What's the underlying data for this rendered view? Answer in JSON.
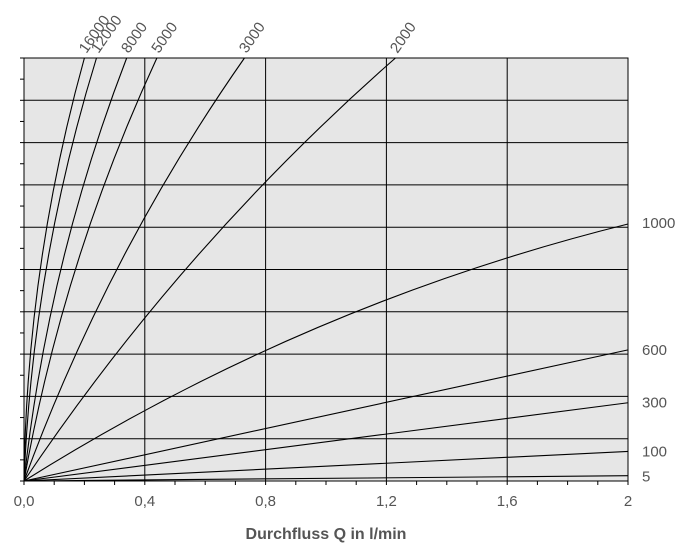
{
  "chart_data": {
    "type": "line",
    "title": "",
    "xlabel": "Durchfluss Q in l/min",
    "ylabel": "",
    "xlim": [
      0,
      2
    ],
    "ylim": [
      0,
      4
    ],
    "grid": true,
    "x_ticks": [
      {
        "value": 0,
        "label": "0,0"
      },
      {
        "value": 0.4,
        "label": "0,4"
      },
      {
        "value": 0.8,
        "label": "0,8"
      },
      {
        "value": 1.2,
        "label": "1,2"
      },
      {
        "value": 1.6,
        "label": "1,6"
      },
      {
        "value": 2,
        "label": "2"
      }
    ],
    "y_gridlines": [
      0.4,
      0.8,
      1.2,
      1.6,
      2.0,
      2.4,
      2.8,
      3.2,
      3.6,
      4.0
    ],
    "series": [
      {
        "name": "5",
        "x": [
          0,
          2
        ],
        "y": [
          0,
          0.05
        ],
        "shape": "linear"
      },
      {
        "name": "100",
        "x": [
          0,
          2
        ],
        "y": [
          0,
          0.28
        ],
        "shape": "linear"
      },
      {
        "name": "300",
        "x": [
          0,
          2
        ],
        "y": [
          0,
          0.74
        ],
        "shape": "linear"
      },
      {
        "name": "600",
        "x": [
          0,
          2
        ],
        "y": [
          0,
          1.24
        ],
        "shape": "linear"
      },
      {
        "name": "1000",
        "x": [
          0,
          2
        ],
        "y": [
          0,
          2.43
        ],
        "shape": "curved"
      },
      {
        "name": "2000",
        "x": [
          0,
          1.23
        ],
        "y": [
          0,
          4.0
        ],
        "shape": "curved"
      },
      {
        "name": "3000",
        "x": [
          0,
          0.73
        ],
        "y": [
          0,
          4.0
        ],
        "shape": "curved"
      },
      {
        "name": "5000",
        "x": [
          0,
          0.44
        ],
        "y": [
          0,
          4.0
        ],
        "shape": "curved"
      },
      {
        "name": "8000",
        "x": [
          0,
          0.34
        ],
        "y": [
          0,
          4.0
        ],
        "shape": "curved"
      },
      {
        "name": "12000",
        "x": [
          0,
          0.24
        ],
        "y": [
          0,
          4.0
        ],
        "shape": "curved"
      },
      {
        "name": "16000",
        "x": [
          0,
          0.2
        ],
        "y": [
          0,
          4.0
        ],
        "shape": "curved"
      }
    ],
    "colors": {
      "plot_bg": "#e6e6e6",
      "line": "#000000",
      "text": "#555555"
    }
  }
}
